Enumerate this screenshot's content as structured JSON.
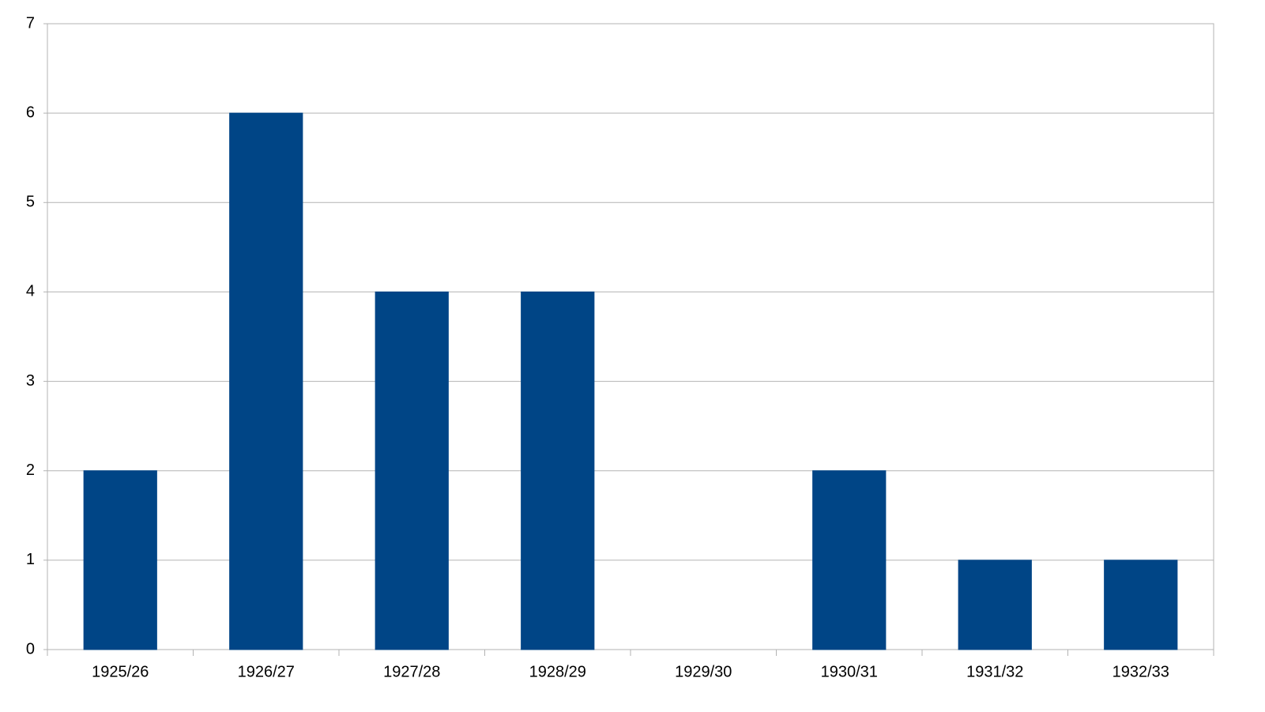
{
  "chart_data": {
    "type": "bar",
    "categories": [
      "1925/26",
      "1926/27",
      "1927/28",
      "1928/29",
      "1929/30",
      "1930/31",
      "1931/32",
      "1932/33"
    ],
    "values": [
      2,
      6,
      4,
      4,
      0,
      2,
      1,
      1
    ],
    "color": "#004586",
    "ylim": [
      0,
      7
    ],
    "yticks": [
      0,
      1,
      2,
      3,
      4,
      5,
      6,
      7
    ],
    "grid": true
  }
}
